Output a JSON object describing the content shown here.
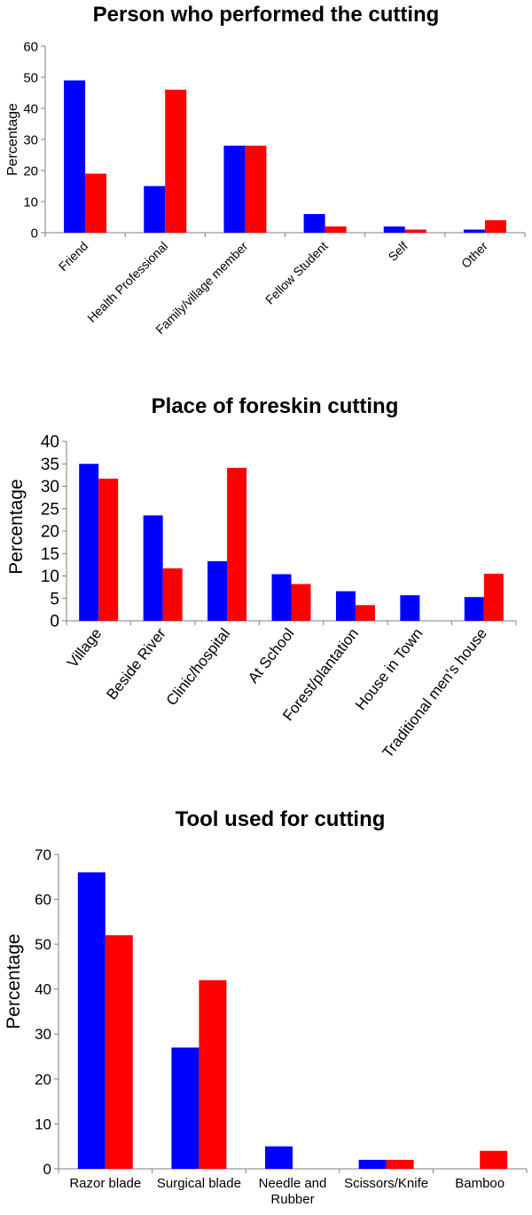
{
  "chart_data": [
    {
      "type": "bar",
      "title": "Person who performed the cutting",
      "ylabel": "Percentage",
      "xlabel": "",
      "ylim": [
        0,
        60
      ],
      "yticks": [
        0,
        10,
        20,
        30,
        40,
        50,
        60
      ],
      "categories": [
        "Friend",
        "Health Professional",
        "Family/village member",
        "Fellow Student",
        "Self",
        "Other"
      ],
      "series": [
        {
          "color": "#0000ff",
          "values": [
            49,
            15,
            28,
            6,
            2,
            1
          ]
        },
        {
          "color": "#ff0000",
          "values": [
            19,
            46,
            28,
            2,
            1,
            4
          ]
        }
      ],
      "grid": false,
      "legend": "none"
    },
    {
      "type": "bar",
      "title": "Place of foreskin cutting",
      "ylabel": "Percentage",
      "xlabel": "",
      "ylim": [
        0,
        40
      ],
      "yticks": [
        0,
        5,
        10,
        15,
        20,
        25,
        30,
        35,
        40
      ],
      "categories": [
        "Village",
        "Beside River",
        "Clinic/hospital",
        "At School",
        "Forest/plantation",
        "House in Town",
        "Traditional men's house"
      ],
      "series": [
        {
          "color": "#0000ff",
          "values": [
            35,
            23.5,
            13.3,
            10.4,
            6.6,
            5.7,
            5.3
          ]
        },
        {
          "color": "#ff0000",
          "values": [
            31.7,
            11.7,
            34.1,
            8.2,
            3.5,
            0,
            10.5
          ]
        }
      ],
      "grid": false,
      "legend": "none"
    },
    {
      "type": "bar",
      "title": "Tool used for cutting",
      "ylabel": "Percentage",
      "xlabel": "",
      "ylim": [
        0,
        70
      ],
      "yticks": [
        0,
        10,
        20,
        30,
        40,
        50,
        60,
        70
      ],
      "categories": [
        [
          "Razor blade"
        ],
        [
          "Surgical blade"
        ],
        [
          "Needle and",
          "Rubber"
        ],
        [
          "Scissors/Knife"
        ],
        [
          "Bamboo"
        ]
      ],
      "series": [
        {
          "color": "#0000ff",
          "values": [
            66,
            27,
            5,
            2,
            0
          ]
        },
        {
          "color": "#ff0000",
          "values": [
            52,
            42,
            0,
            2,
            4
          ]
        }
      ],
      "grid": false,
      "legend": "none"
    }
  ]
}
